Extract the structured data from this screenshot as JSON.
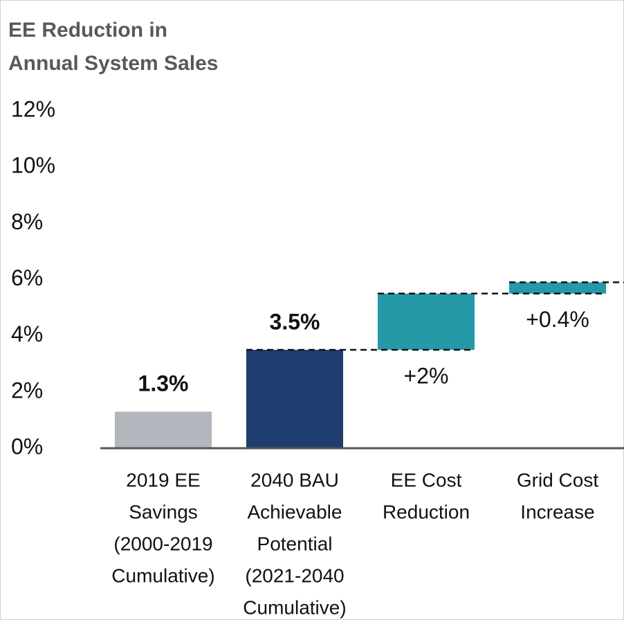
{
  "chart_data": {
    "type": "waterfall",
    "ylabel": [
      "EE Reduction in",
      "Annual System Sales"
    ],
    "categories": [
      [
        "2019 EE",
        "Savings",
        "(2000-2019",
        "Cumulative)"
      ],
      [
        "2040 BAU",
        "Achievable",
        "Potential",
        "(2021-2040",
        "Cumulative)"
      ],
      [
        "EE Cost",
        "Reduction"
      ],
      [
        "Grid Cost",
        "Increase"
      ]
    ],
    "measure": [
      "absolute",
      "absolute",
      "relative",
      "relative"
    ],
    "values": [
      1.3,
      3.5,
      2,
      0.4
    ],
    "value_labels": [
      "1.3%",
      "3.5%",
      "+2%",
      "+0.4%"
    ],
    "colors": [
      "#b2b6bd",
      "#1f3d6e",
      "#2599a8",
      "#2599a8"
    ],
    "ylim": [
      0,
      12
    ],
    "yticks": [
      {
        "value": 0,
        "label": "0%"
      },
      {
        "value": 2,
        "label": "2%"
      },
      {
        "value": 4,
        "label": "4%"
      },
      {
        "value": 6,
        "label": "6%"
      },
      {
        "value": 8,
        "label": "8%"
      },
      {
        "value": 10,
        "label": "10%"
      },
      {
        "value": 12,
        "label": "12%"
      }
    ],
    "grid": false
  }
}
